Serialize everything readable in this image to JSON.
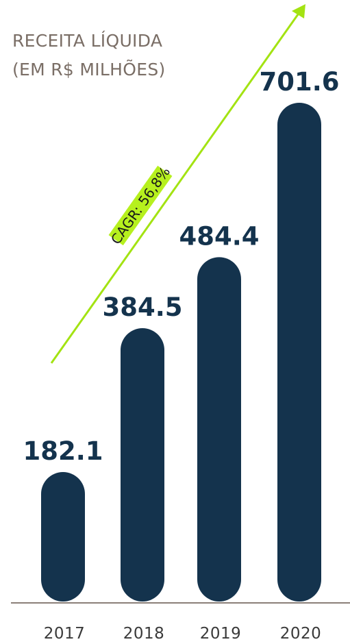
{
  "chart_data": {
    "type": "bar",
    "title": "RECEITA LÍQUIDA",
    "subtitle": "(EM R$ MILHÕES)",
    "categories": [
      "2017",
      "2018",
      "2019",
      "2020"
    ],
    "values": [
      182.1,
      384.5,
      484.4,
      701.6
    ],
    "value_labels": [
      "182.1",
      "384.5",
      "484.4",
      "701.6"
    ],
    "ylim": [
      0,
      701.6
    ],
    "grid": false,
    "annotation": "CAGR: 56,8%",
    "colors": {
      "bar": "#14334d",
      "title": "#7a6e66",
      "baseline": "#8a7f78",
      "arrow": "#a3e312",
      "annotation_bg": "#b6f01e"
    }
  }
}
